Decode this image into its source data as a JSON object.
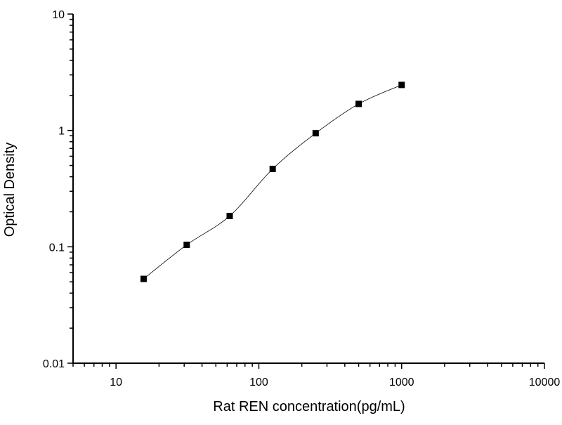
{
  "chart_data": {
    "type": "scatter",
    "title": "",
    "xlabel": "Rat REN concentration(pg/mL)",
    "ylabel": "Optical Density",
    "xscale": "log",
    "yscale": "log",
    "xlim": [
      5,
      10000
    ],
    "ylim": [
      0.01,
      10
    ],
    "xticks": [
      "10",
      "100",
      "1000",
      "10000"
    ],
    "yticks": [
      "0.01",
      "0.1",
      "1",
      "10"
    ],
    "grid": false,
    "legend": "none",
    "marker": "square",
    "fit_curve": true,
    "color": "#000000",
    "series": [
      {
        "x": [
          15.6,
          31.25,
          62.5,
          125,
          250,
          500,
          1000
        ],
        "y": [
          0.053,
          0.104,
          0.184,
          0.467,
          0.946,
          1.69,
          2.46
        ]
      }
    ]
  }
}
